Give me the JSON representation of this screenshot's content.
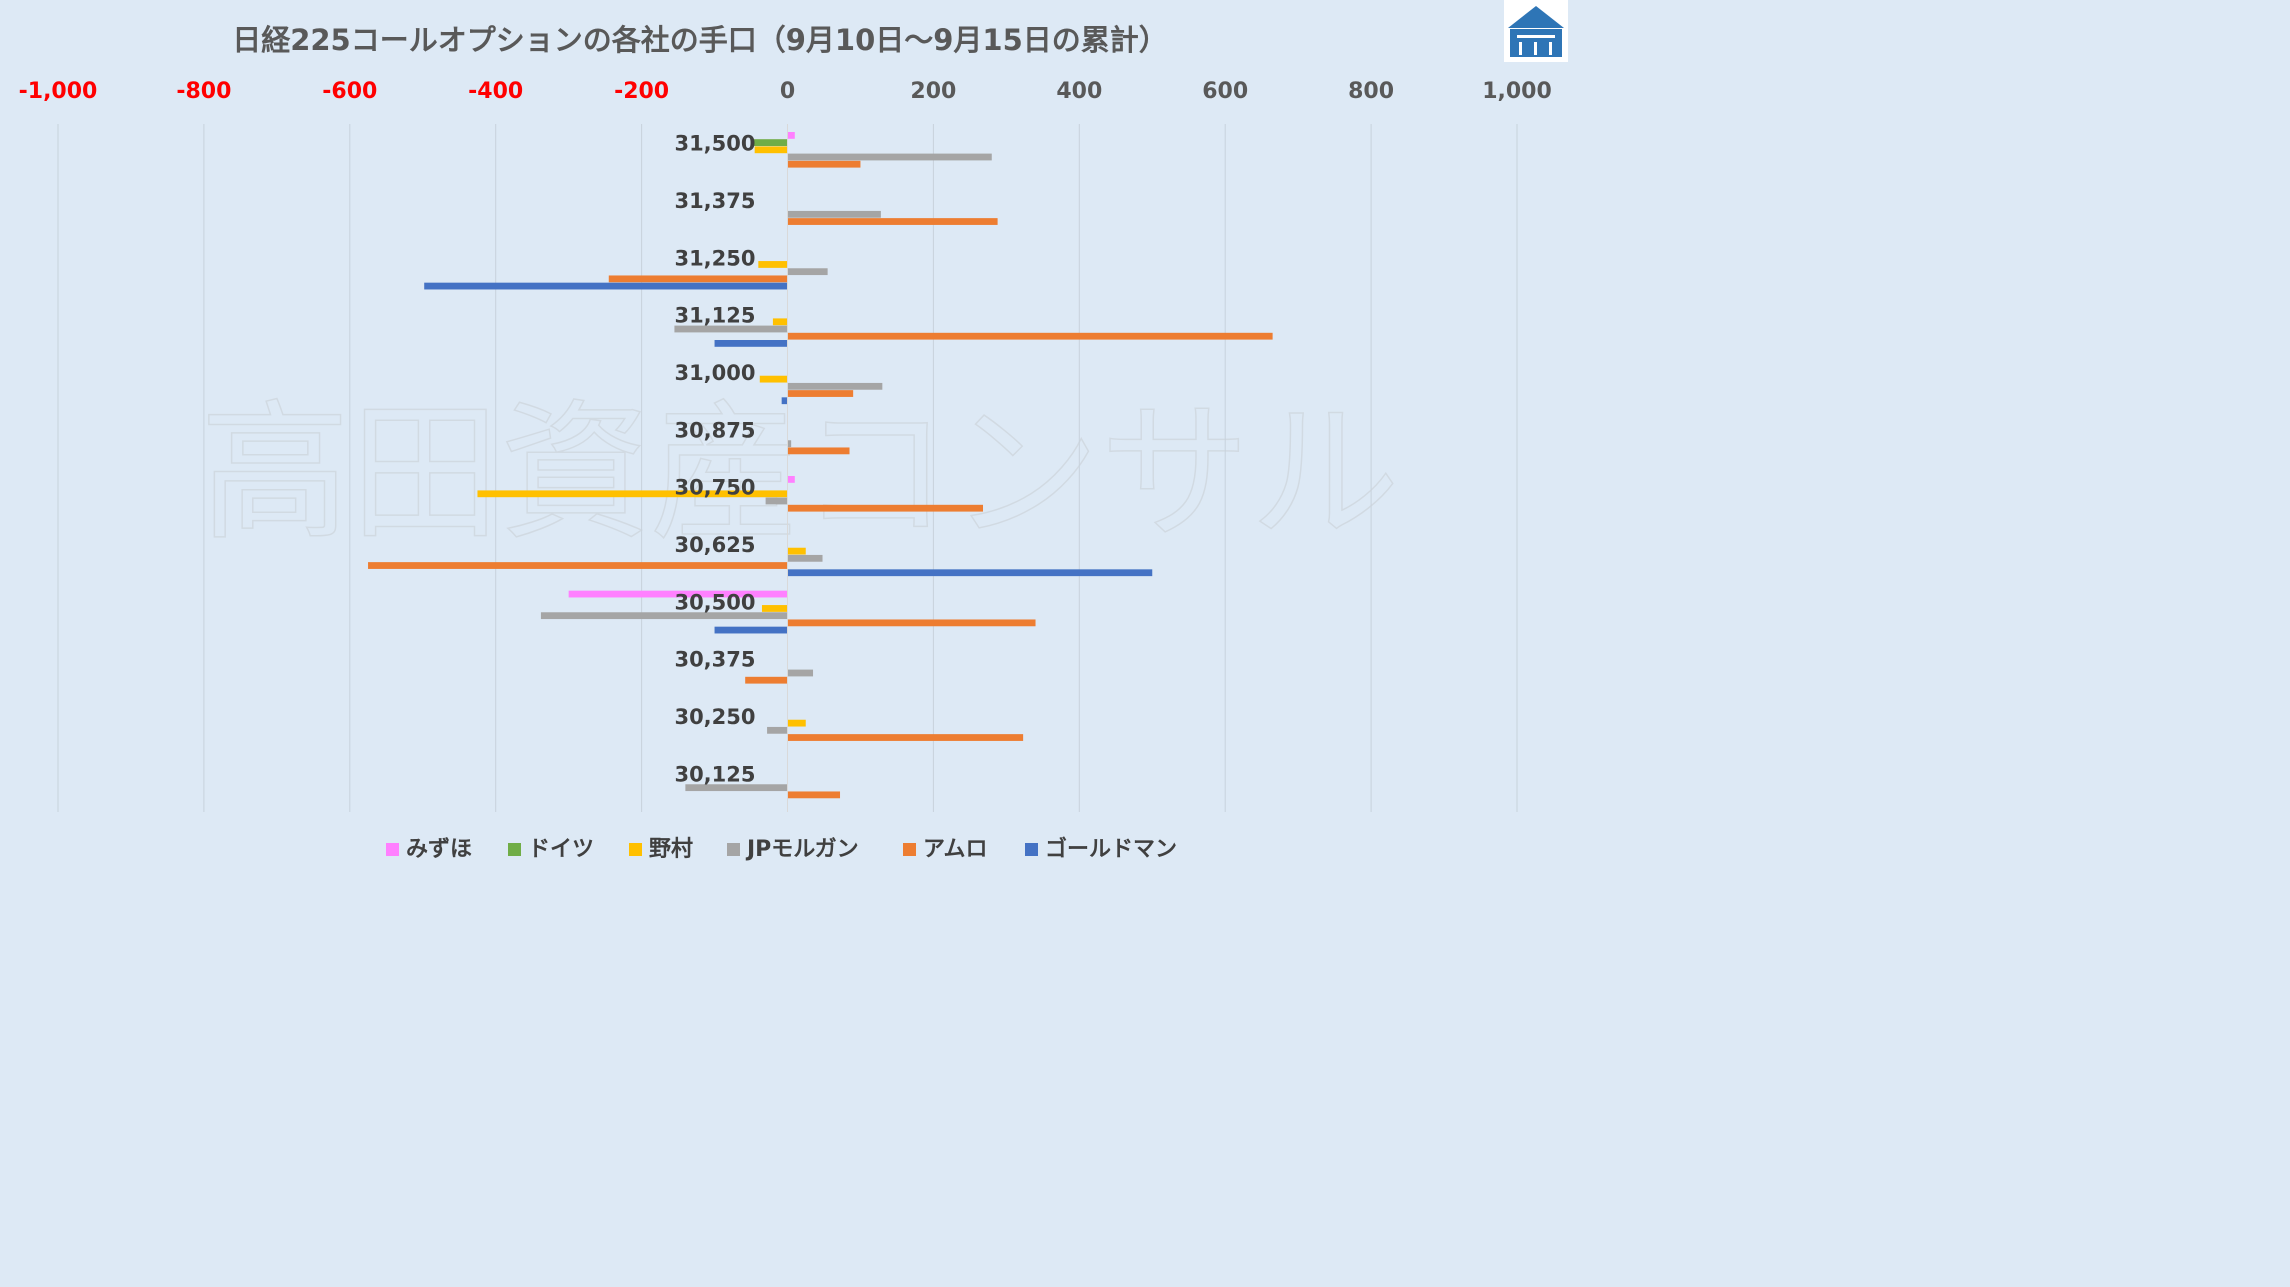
{
  "chart_data": {
    "type": "bar",
    "orientation": "horizontal",
    "title": "日経225コールオプションの各社の手口（9月10日～9月15日の累計）",
    "watermark": "高田資産コンサル",
    "xlim": [
      -1000,
      1000
    ],
    "xticks": [
      -1000,
      -800,
      -600,
      -400,
      -200,
      0,
      200,
      400,
      600,
      800,
      1000
    ],
    "xtick_labels": [
      "-1,000",
      "-800",
      "-600",
      "-400",
      "-200",
      "0",
      "200",
      "400",
      "600",
      "800",
      "1,000"
    ],
    "negative_tick_color": "#ff0000",
    "positive_tick_color": "#595959",
    "grid": true,
    "legend_position": "bottom",
    "categories": [
      "31,500",
      "31,375",
      "31,250",
      "31,125",
      "31,000",
      "30,875",
      "30,750",
      "30,625",
      "30,500",
      "30,375",
      "30,250",
      "30,125"
    ],
    "series": [
      {
        "name": "みずほ",
        "color": "#ff80ff",
        "values": [
          10,
          0,
          0,
          0,
          0,
          0,
          10,
          0,
          -300,
          0,
          0,
          0
        ]
      },
      {
        "name": "ドイツ",
        "color": "#70ad47",
        "values": [
          -48,
          0,
          0,
          0,
          0,
          0,
          0,
          0,
          0,
          0,
          0,
          0
        ]
      },
      {
        "name": "野村",
        "color": "#ffc000",
        "values": [
          -45,
          0,
          -40,
          -20,
          -38,
          0,
          -425,
          25,
          -35,
          0,
          25,
          0
        ]
      },
      {
        "name": "JPモルガン",
        "color": "#a5a5a5",
        "values": [
          280,
          128,
          55,
          -155,
          130,
          5,
          -30,
          48,
          -338,
          35,
          -28,
          -140
        ]
      },
      {
        "name": "アムロ",
        "color": "#ed7d31",
        "values": [
          100,
          288,
          -245,
          665,
          90,
          85,
          268,
          -575,
          340,
          -58,
          323,
          72
        ]
      },
      {
        "name": "ゴールドマン",
        "color": "#4472c4",
        "values": [
          0,
          0,
          -498,
          -100,
          -8,
          0,
          0,
          500,
          -100,
          0,
          0,
          0
        ]
      }
    ]
  },
  "logo": {
    "name": "takata-asset-logo",
    "color": "#2e75b6"
  }
}
